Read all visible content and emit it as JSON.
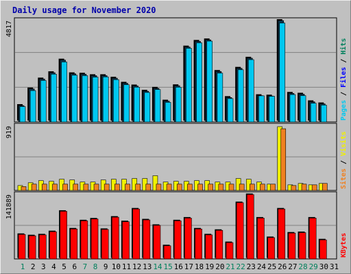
{
  "title": "Daily usage for November 2020",
  "colors": {
    "background": "#c0c0c0",
    "title": "#0000aa",
    "hits": "#00805c",
    "files": "#0000ff",
    "pages": "#00c8f0",
    "visits": "#f0f000",
    "sites": "#f08020",
    "kbytes": "#ff0000",
    "weekend_label": "#00805c"
  },
  "chart_data": [
    {
      "type": "bar",
      "panel": "hits-files-pages",
      "ymax_label": "4817",
      "ylim": [
        0,
        4817
      ],
      "legend": [
        {
          "name": "Hits",
          "color": "#00805c"
        },
        {
          "name": "Files",
          "color": "#0000ff"
        },
        {
          "name": "Pages",
          "color": "#00c8f0"
        }
      ],
      "categories": [
        1,
        2,
        3,
        4,
        5,
        6,
        7,
        8,
        9,
        10,
        11,
        12,
        13,
        14,
        15,
        16,
        17,
        18,
        19,
        20,
        21,
        22,
        23,
        24,
        25,
        26,
        27,
        28,
        29,
        30,
        31
      ],
      "series": [
        {
          "name": "Hits",
          "values": [
            780,
            1570,
            2040,
            2340,
            2940,
            2290,
            2270,
            2200,
            2200,
            2080,
            1840,
            1710,
            1460,
            1600,
            990,
            1720,
            3560,
            3830,
            3900,
            2400,
            1160,
            2550,
            3030,
            1250,
            1230,
            4817,
            1360,
            1320,
            960,
            860,
            null
          ]
        },
        {
          "name": "Pages",
          "values": [
            730,
            1490,
            1970,
            2270,
            2850,
            2220,
            2200,
            2130,
            2140,
            2010,
            1770,
            1650,
            1400,
            1540,
            930,
            1650,
            3500,
            3760,
            3840,
            2320,
            1110,
            2480,
            2960,
            1240,
            1220,
            4700,
            1300,
            1250,
            890,
            800,
            null
          ]
        }
      ]
    },
    {
      "type": "bar",
      "panel": "visits-sites",
      "ymax_label": "919",
      "ylim": [
        0,
        919
      ],
      "legend": [
        {
          "name": "Visits",
          "color": "#f0f000"
        },
        {
          "name": "Sites",
          "color": "#f08020"
        }
      ],
      "categories": [
        1,
        2,
        3,
        4,
        5,
        6,
        7,
        8,
        9,
        10,
        11,
        12,
        13,
        14,
        15,
        16,
        17,
        18,
        19,
        20,
        21,
        22,
        23,
        24,
        25,
        26,
        27,
        28,
        29,
        30,
        31
      ],
      "series": [
        {
          "name": "Visits",
          "values": [
            70,
            110,
            140,
            130,
            160,
            150,
            120,
            120,
            150,
            160,
            160,
            170,
            170,
            210,
            120,
            130,
            130,
            140,
            140,
            120,
            120,
            170,
            160,
            120,
            90,
            910,
            80,
            100,
            80,
            100,
            null
          ]
        },
        {
          "name": "Sites",
          "values": [
            55,
            90,
            90,
            90,
            90,
            90,
            90,
            90,
            90,
            90,
            90,
            90,
            90,
            90,
            90,
            90,
            90,
            90,
            90,
            90,
            90,
            90,
            90,
            90,
            90,
            880,
            70,
            90,
            80,
            100,
            null
          ]
        }
      ]
    },
    {
      "type": "bar",
      "panel": "kbytes",
      "ymax_label": "141889",
      "ylim": [
        0,
        141889
      ],
      "legend": [
        {
          "name": "KBytes",
          "color": "#ff0000"
        }
      ],
      "categories": [
        1,
        2,
        3,
        4,
        5,
        6,
        7,
        8,
        9,
        10,
        11,
        12,
        13,
        14,
        15,
        16,
        17,
        18,
        19,
        20,
        21,
        22,
        23,
        24,
        25,
        26,
        27,
        28,
        29,
        30,
        31
      ],
      "series": [
        {
          "name": "KBytes",
          "values": [
            54000,
            51000,
            53000,
            60000,
            105000,
            66000,
            84000,
            88000,
            65000,
            92000,
            82000,
            110000,
            86000,
            74000,
            29000,
            84000,
            90000,
            66000,
            53000,
            63000,
            36000,
            124000,
            141889,
            90000,
            47000,
            110000,
            57000,
            58000,
            90000,
            42000,
            null
          ]
        }
      ]
    }
  ],
  "day_labels": [
    "1",
    "2",
    "3",
    "4",
    "5",
    "6",
    "7",
    "8",
    "9",
    "10",
    "11",
    "12",
    "13",
    "14",
    "15",
    "16",
    "17",
    "18",
    "19",
    "20",
    "21",
    "22",
    "23",
    "24",
    "25",
    "26",
    "27",
    "28",
    "29",
    "30",
    "31"
  ],
  "weekend_days": [
    1,
    7,
    8,
    14,
    15,
    21,
    22,
    28,
    29
  ]
}
